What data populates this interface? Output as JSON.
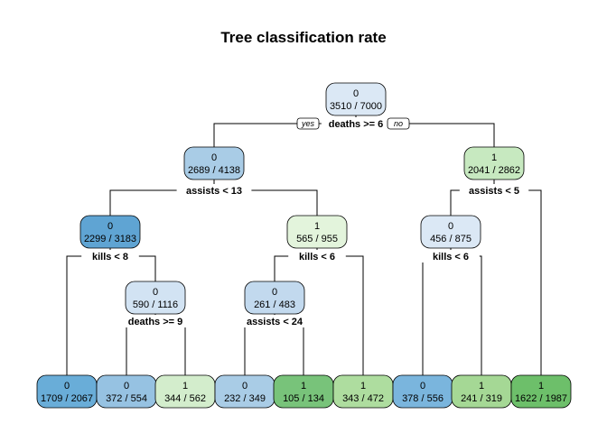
{
  "title": "Tree classification rate",
  "root_labels": {
    "yes": "yes",
    "no": "no"
  },
  "nodes": [
    {
      "id": "n1",
      "class": "0",
      "counts": "3510 / 7000",
      "color": "#dbe8f5"
    },
    {
      "id": "n2",
      "class": "0",
      "counts": "2689 / 4138",
      "color": "#a9cce6"
    },
    {
      "id": "n3",
      "class": "1",
      "counts": "2041 / 2862",
      "color": "#c7e9c0"
    },
    {
      "id": "n4",
      "class": "0",
      "counts": "2299 / 3183",
      "color": "#5fa4d3"
    },
    {
      "id": "n5",
      "class": "1",
      "counts": "565 / 955",
      "color": "#e3f4dc"
    },
    {
      "id": "n6",
      "class": "0",
      "counts": "456 / 875",
      "color": "#dbe8f5"
    },
    {
      "id": "n7",
      "class": "0",
      "counts": "590 / 1116",
      "color": "#d2e3f3"
    },
    {
      "id": "n8",
      "class": "0",
      "counts": "261 / 483",
      "color": "#c2d9ee"
    },
    {
      "id": "l1",
      "class": "0",
      "counts": "1709 / 2067",
      "color": "#69add8"
    },
    {
      "id": "l2",
      "class": "0",
      "counts": "372 / 554",
      "color": "#96c2e2"
    },
    {
      "id": "l3",
      "class": "1",
      "counts": "344 / 562",
      "color": "#d3edcc"
    },
    {
      "id": "l4",
      "class": "0",
      "counts": "232 / 349",
      "color": "#a9cce6"
    },
    {
      "id": "l5",
      "class": "1",
      "counts": "105 / 134",
      "color": "#78c37a"
    },
    {
      "id": "l6",
      "class": "1",
      "counts": "343 / 472",
      "color": "#aedd9f"
    },
    {
      "id": "l7",
      "class": "0",
      "counts": "378 / 556",
      "color": "#7ab5dd"
    },
    {
      "id": "l8",
      "class": "1",
      "counts": "241 / 319",
      "color": "#a5d895"
    },
    {
      "id": "l9",
      "class": "1",
      "counts": "1622 / 1987",
      "color": "#6dbf6a"
    }
  ],
  "splits": [
    {
      "id": "s1",
      "label": "deaths >= 6"
    },
    {
      "id": "s2",
      "label": "assists < 13"
    },
    {
      "id": "s3",
      "label": "assists < 5"
    },
    {
      "id": "s4",
      "label": "kills < 8"
    },
    {
      "id": "s5",
      "label": "kills < 6"
    },
    {
      "id": "s6",
      "label": "kills < 6"
    },
    {
      "id": "s7",
      "label": "deaths >= 9"
    },
    {
      "id": "s8",
      "label": "assists < 24"
    }
  ]
}
